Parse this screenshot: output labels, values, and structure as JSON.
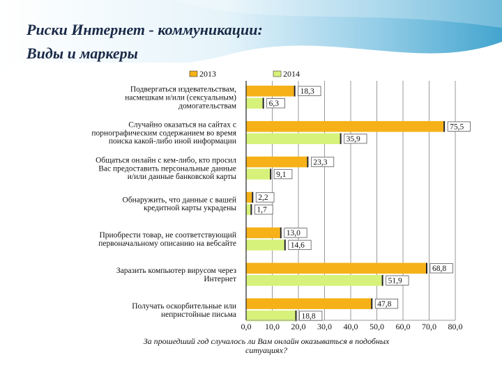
{
  "slide": {
    "title_line1": "Риски Интернет - коммуникации:",
    "title_line2": "Виды и маркеры"
  },
  "colors": {
    "series_2013": "#f5b117",
    "series_2014": "#d6f27a",
    "title": "#1a2a48",
    "header_gradient_start": "#3aa0cc",
    "header_gradient_end": "#bfe3f2"
  },
  "chart_data": {
    "type": "bar",
    "orientation": "horizontal",
    "legend_position": "top",
    "grid": true,
    "categories": [
      "Подвергаться издевательствам, насмешкам и/или (сексуальным) домогательствам",
      "Случайно оказаться на сайтах с порнографическим содержанием во время поиска какой-либо иной информации",
      "Общаться онлайн с кем-либо, кто просил Вас предоставить персональные данные и/или данные банковской карты",
      "Обнаружить, что данные с вашей кредитной карты украдены",
      "Приобрести товар, не соответствующий первоначальному описанию на вебсайте",
      "Заразить компьютер вирусом через Интернет",
      "Получать оскорбительные или непристойные письма"
    ],
    "category_lines": [
      [
        "Подвергаться издевательствам,",
        "насмешкам и/или (сексуальным)",
        "домогательствам"
      ],
      [
        "Случайно оказаться на сайтах с",
        "порнографическим содержанием во время",
        "поиска какой-либо иной информации"
      ],
      [
        "Общаться онлайн с кем-либо, кто просил",
        "Вас предоставить персональные данные",
        "и/или данные банковской карты"
      ],
      [
        "Обнаружить, что данные с вашей",
        "кредитной карты украдены"
      ],
      [
        "Приобрести товар, не соответствующий",
        "первоначальному описанию на вебсайте"
      ],
      [
        "Заразить компьютер вирусом через",
        "Интернет"
      ],
      [
        "Получать оскорбительные или",
        "непристойные письма"
      ]
    ],
    "series": [
      {
        "name": "2013",
        "values": [
          18.3,
          75.5,
          23.3,
          2.2,
          13.0,
          68.8,
          47.8
        ],
        "labels": [
          "18,3",
          "75,5",
          "23,3",
          "2,2",
          "13,0",
          "68,8",
          "47,8"
        ]
      },
      {
        "name": "2014",
        "values": [
          6.3,
          35.9,
          9.1,
          1.7,
          14.6,
          51.9,
          18.8
        ],
        "labels": [
          "6,3",
          "35,9",
          "9,1",
          "1,7",
          "14,6",
          "51,9",
          "18,8"
        ]
      }
    ],
    "xlim": [
      0,
      80
    ],
    "ticks": [
      0,
      10,
      20,
      30,
      40,
      50,
      60,
      70,
      80
    ],
    "tick_labels": [
      "0,0",
      "10,0",
      "20,0",
      "30,0",
      "40,0",
      "50,0",
      "60,0",
      "70,0",
      "80,0"
    ],
    "xlabel_lines": [
      "За прошедший год случалось ли Вам онлайн оказываться в подобных",
      "ситуациях?"
    ]
  }
}
